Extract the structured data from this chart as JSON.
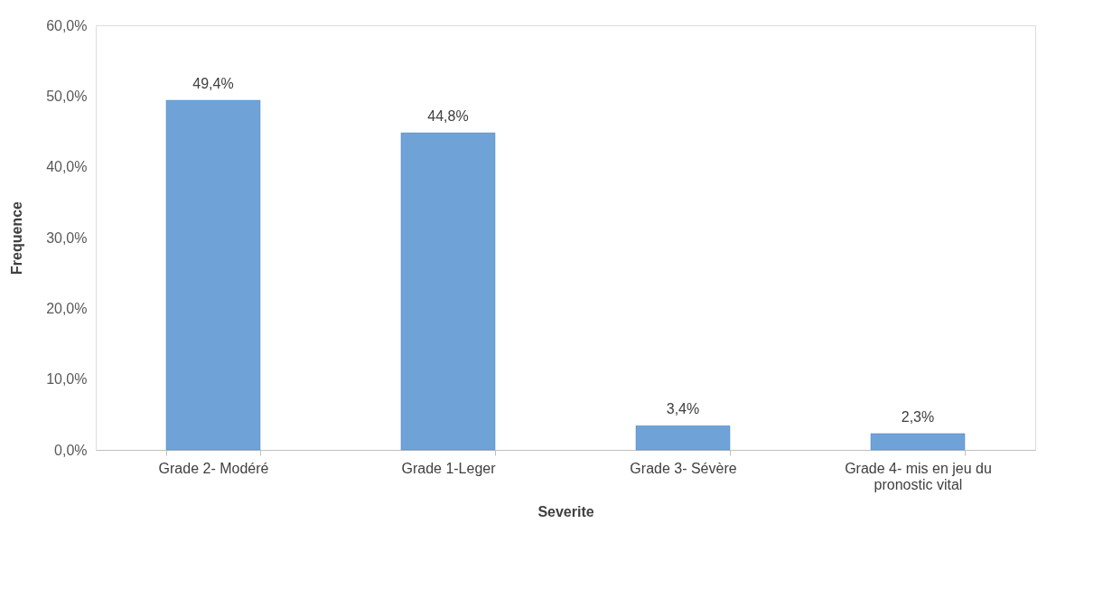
{
  "chart_data": {
    "type": "bar",
    "xlabel": "Severite",
    "ylabel": "Frequence",
    "categories": [
      "Grade 2- Modéré",
      "Grade 1-Leger",
      "Grade 3- Sévère",
      "Grade 4- mis en jeu du pronostic vital"
    ],
    "values": [
      49.4,
      44.8,
      3.4,
      2.3
    ],
    "color": "#6fa3d8",
    "value_labels": [
      "49,4%",
      "44,8%",
      "3,4%",
      "2,3%"
    ],
    "ylim": [
      0,
      60
    ],
    "yticks": [
      {
        "value": 0,
        "label": "0,0%"
      },
      {
        "value": 10,
        "label": "10,0%"
      },
      {
        "value": 20,
        "label": "20,0%"
      },
      {
        "value": 30,
        "label": "30,0%"
      },
      {
        "value": 40,
        "label": "40,0%"
      },
      {
        "value": 50,
        "label": "50,0%"
      },
      {
        "value": 60,
        "label": "60,0%"
      }
    ],
    "grid": false
  }
}
